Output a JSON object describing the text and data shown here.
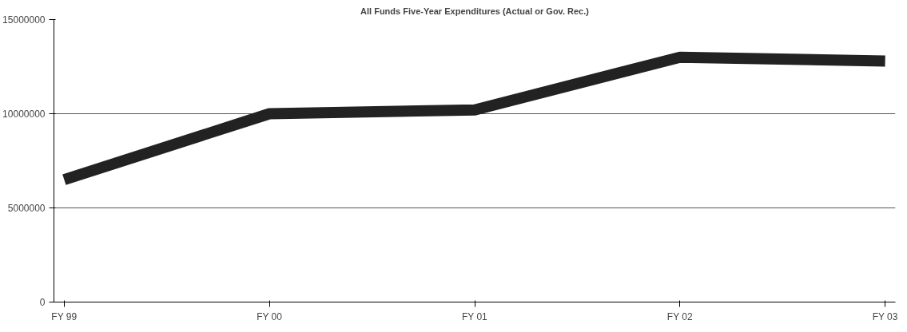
{
  "chart_data": {
    "type": "line",
    "title": "All Funds Five-Year Expenditures (Actual or Gov. Rec.)",
    "categories": [
      "FY 99",
      "FY 00",
      "FY 01",
      "FY 02",
      "FY 03"
    ],
    "series": [
      {
        "color": "#222222",
        "values": [
          6500000,
          10000000,
          10200000,
          13000000,
          12800000
        ]
      }
    ],
    "ylim": [
      0,
      15000000
    ],
    "yticks": [
      0,
      5000000,
      10000000,
      15000000
    ],
    "grid": "y",
    "marker": "none",
    "line_style": "solid"
  }
}
